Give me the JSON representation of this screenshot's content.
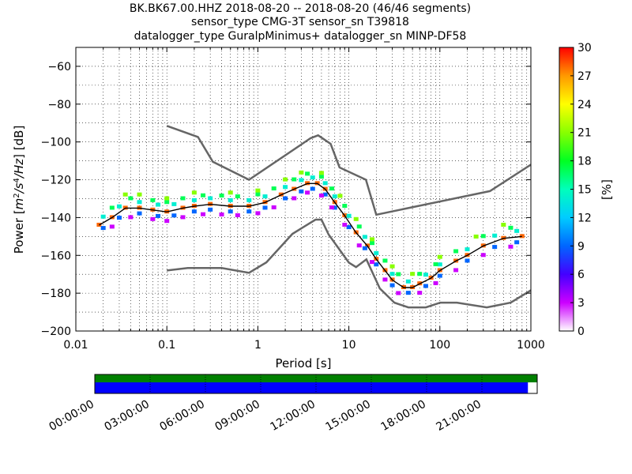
{
  "title_lines": [
    "BK.BK67.00.HHZ   2018-08-20 -- 2018-08-20  (46/46 segments)",
    "sensor_type CMG-3T sensor_sn T39818",
    "datalogger_type GuralpMinimus+ datalogger_sn MINP-DF58"
  ],
  "chart_data": {
    "type": "heatmap",
    "xlabel": "Period [s]",
    "ylabel": "Power [m^2/s^4/Hz] [dB]",
    "x_scale": "log",
    "xlim": [
      0.01,
      1000
    ],
    "ylim": [
      -200,
      -50
    ],
    "x_tick_labels": [
      "0.01",
      "0.1",
      "1",
      "10",
      "100",
      "1000"
    ],
    "y_ticks": [
      -60,
      -80,
      -100,
      -120,
      -140,
      -160,
      -180,
      -200
    ],
    "colorbar": {
      "label": "[%]",
      "range": [
        0,
        30
      ],
      "ticks": [
        0,
        3,
        6,
        9,
        12,
        15,
        18,
        21,
        24,
        27,
        30
      ]
    },
    "noise_models": [
      {
        "period": [
          0.1,
          0.22,
          0.32,
          0.8,
          3.8,
          4.6,
          6.3,
          7.9,
          15.4,
          20,
          354.8,
          1000
        ],
        "db": [
          -91.5,
          -97.4,
          -110.5,
          -120,
          -98,
          -96.5,
          -101,
          -113.5,
          -120,
          -138.5,
          -126,
          -112
        ]
      },
      {
        "period": [
          0.1,
          0.17,
          0.4,
          0.8,
          1.24,
          2.4,
          4.3,
          5,
          6,
          10,
          12,
          15.6,
          21.9,
          31.6,
          45,
          70,
          101,
          154,
          328,
          600,
          1000
        ],
        "db": [
          -168,
          -166.7,
          -166.7,
          -169.2,
          -163.7,
          -148.6,
          -141.1,
          -141.1,
          -149,
          -163.8,
          -166.2,
          -162.1,
          -177.5,
          -185,
          -187.5,
          -187.5,
          -185,
          -185,
          -187.5,
          -185,
          -178.5
        ]
      }
    ],
    "median_curve": {
      "period": [
        0.018,
        0.025,
        0.035,
        0.05,
        0.07,
        0.1,
        0.15,
        0.2,
        0.3,
        0.5,
        0.8,
        1.2,
        1.8,
        2.5,
        3.5,
        4.5,
        5.5,
        7,
        9,
        12,
        16,
        20,
        25,
        30,
        40,
        50,
        60,
        80,
        100,
        150,
        200,
        300,
        500,
        800
      ],
      "db": [
        -144,
        -140,
        -135,
        -135,
        -136,
        -137,
        -135,
        -134,
        -133,
        -134,
        -134,
        -132,
        -128,
        -125,
        -122,
        -122,
        -125,
        -132,
        -139,
        -148,
        -155,
        -162,
        -168,
        -173,
        -177,
        -177,
        -175,
        -172,
        -168,
        -163,
        -160,
        -155,
        -151,
        -150
      ]
    },
    "psd_histogram": [
      {
        "period": [
          0.018,
          0.025,
          0.035,
          0.05,
          0.07,
          0.1,
          0.15,
          0.2,
          0.3,
          0.5,
          0.8,
          1.2,
          1.8,
          2.5,
          3.5,
          4.5,
          5.5,
          7,
          9,
          12,
          16,
          20,
          25,
          30,
          40,
          50,
          60,
          80,
          100,
          150,
          200,
          300,
          500,
          800
        ],
        "offset_db": 0,
        "percent": 28
      },
      {
        "period": [
          0.02,
          0.03,
          0.05,
          0.08,
          0.12,
          0.2,
          0.3,
          0.5,
          0.8,
          1.2,
          2,
          3,
          4,
          5.5,
          7,
          10,
          15,
          20,
          30,
          45,
          70,
          100,
          200,
          400,
          700
        ],
        "offset_db": -3,
        "percent": 9
      },
      {
        "period": [
          0.02,
          0.03,
          0.05,
          0.08,
          0.12,
          0.2,
          0.3,
          0.5,
          0.8,
          1.2,
          2,
          3,
          4,
          5.5,
          7,
          10,
          15,
          20,
          30,
          45,
          70,
          100,
          200,
          400,
          700
        ],
        "offset_db": 3,
        "percent": 14
      },
      {
        "period": [
          0.025,
          0.04,
          0.07,
          0.1,
          0.15,
          0.25,
          0.4,
          0.6,
          1,
          1.5,
          2.5,
          3.5,
          5,
          6.5,
          9,
          13,
          18,
          25,
          35,
          60,
          90,
          150,
          300,
          600
        ],
        "offset_db": -5,
        "percent": 3
      },
      {
        "period": [
          0.025,
          0.04,
          0.07,
          0.1,
          0.15,
          0.25,
          0.4,
          0.6,
          1,
          1.5,
          2.5,
          3.5,
          5,
          6.5,
          9,
          13,
          18,
          25,
          35,
          60,
          90,
          150,
          300,
          600
        ],
        "offset_db": 5,
        "percent": 17
      },
      {
        "period": [
          0.035,
          0.05,
          0.1,
          0.2,
          0.5,
          1,
          2,
          3,
          5,
          8,
          12,
          18,
          30,
          50,
          100,
          250,
          500
        ],
        "offset_db": 7,
        "percent": 21
      }
    ]
  },
  "timeline": {
    "tick_labels": [
      "00:00:00",
      "03:00:00",
      "06:00:00",
      "09:00:00",
      "12:00:00",
      "15:00:00",
      "18:00:00",
      "21:00:00"
    ],
    "segments_available": 46,
    "segments_total": 46,
    "coverage_fraction": 0.979,
    "available_color": "#008000",
    "used_color": "#0000ff"
  }
}
